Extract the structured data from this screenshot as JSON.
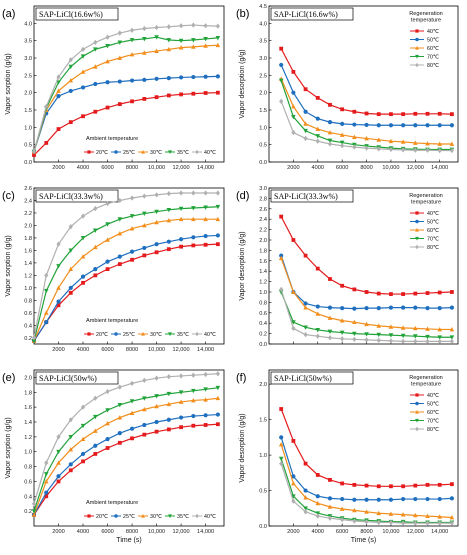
{
  "panels": [
    {
      "letter": "(a)",
      "side": "left",
      "row": 0,
      "title": "SAP-LiCl(16.6w%)",
      "ylabel": "Vapor sorption (g/g)",
      "xlabel": "",
      "legend_title": "Ambient temperature",
      "ylim": [
        0.0,
        4.5
      ],
      "yticks": [
        0.0,
        0.5,
        1.0,
        1.5,
        2.0,
        2.5,
        3.0,
        3.5,
        4.0
      ],
      "ytick_labels": [
        "0.0",
        "0.5",
        "1.0",
        "1.5",
        "2.0",
        "2.5",
        "3.0",
        "3.5",
        "4.0"
      ],
      "show_xticklabels": true
    },
    {
      "letter": "(b)",
      "side": "right",
      "row": 0,
      "title": "SAP-LiCl(16.6w%)",
      "ylabel": "Vapor desorption (g/g)",
      "xlabel": "",
      "legend_title": "Regeneration\ntemperature",
      "ylim": [
        0.0,
        4.5
      ],
      "yticks": [
        0.0,
        0.5,
        1.0,
        1.5,
        2.0,
        2.5,
        3.0,
        3.5,
        4.0,
        4.5
      ],
      "ytick_labels": [
        "0.0",
        "0.5",
        "1.0",
        "1.5",
        "2.0",
        "2.5",
        "3.0",
        "3.5",
        "4.0",
        "4.5"
      ],
      "show_xticklabels": true
    },
    {
      "letter": "(c)",
      "side": "left",
      "row": 1,
      "title": "SAP-LiCl(33.3w%)",
      "ylabel": "Vapor sorption (g/g)",
      "xlabel": "",
      "legend_title": "Ambient temperature",
      "ylim": [
        0.1,
        2.6
      ],
      "yticks": [
        0.2,
        0.4,
        0.6,
        0.8,
        1.0,
        1.2,
        1.4,
        1.6,
        1.8,
        2.0,
        2.2,
        2.4,
        2.6
      ],
      "ytick_labels": [
        "0.2",
        "0.4",
        "0.6",
        "0.8",
        "1.0",
        "1.2",
        "1.4",
        "1.6",
        "1.8",
        "2.0",
        "2.2",
        "2.4",
        "2.6"
      ],
      "show_xticklabels": true
    },
    {
      "letter": "(d)",
      "side": "right",
      "row": 1,
      "title": "SAP-LiCl(33.3w%)",
      "ylabel": "Vapor desorption (g/g)",
      "xlabel": "",
      "legend_title": "Regeneration\ntemperature",
      "ylim": [
        0.0,
        3.0
      ],
      "yticks": [
        0.0,
        0.2,
        0.4,
        0.6,
        0.8,
        1.0,
        1.2,
        1.4,
        1.6,
        1.8,
        2.0,
        2.2,
        2.4,
        2.6,
        2.8,
        3.0
      ],
      "ytick_labels": [
        "0.0",
        "0.2",
        "0.4",
        "0.6",
        "0.8",
        "1.0",
        "1.2",
        "1.4",
        "1.6",
        "1.8",
        "2.0",
        "2.2",
        "2.4",
        "2.6",
        "2.8",
        "3.0"
      ],
      "show_xticklabels": false
    },
    {
      "letter": "(e)",
      "side": "left",
      "row": 2,
      "title": "SAP-LiCl(50w%)",
      "ylabel": "Vapor sorption (g/g)",
      "xlabel": "Time (s)",
      "legend_title": "Ambient temperature",
      "ylim": [
        0.0,
        2.1
      ],
      "yticks": [
        0.2,
        0.4,
        0.6,
        0.8,
        1.0,
        1.2,
        1.4,
        1.6,
        1.8,
        2.0
      ],
      "ytick_labels": [
        "0.2",
        "0.4",
        "0.6",
        "0.8",
        "1.0",
        "1.2",
        "1.4",
        "1.6",
        "1.8",
        "2.0"
      ],
      "show_xticklabels": true
    },
    {
      "letter": "(f)",
      "side": "right",
      "row": 2,
      "title": "SAP-LiCl(50w%)",
      "ylabel": "Vapor desorption (g/g)",
      "xlabel": "Time (s)",
      "legend_title": "Regeneration\ntemperature",
      "ylim": [
        0.0,
        2.2
      ],
      "yticks": [
        0.0,
        0.5,
        1.0,
        1.5,
        2.0
      ],
      "ytick_labels": [
        "0.0",
        "0.5",
        "1.0",
        "1.5",
        "2.0"
      ],
      "show_xticklabels": true
    }
  ],
  "xticks": [
    2000,
    4000,
    6000,
    8000,
    10000,
    12000,
    14000
  ],
  "xtick_labels": [
    "2000",
    "4000",
    "6000",
    "8000",
    "10,000",
    "12,000",
    "14,000"
  ],
  "xlim": [
    0,
    15500
  ],
  "colors": {
    "s20": "#e41a1c",
    "s25": "#1f6fbf",
    "s30": "#f28e1c",
    "s35": "#22a33a",
    "s40": "#b0b0b0",
    "d40": "#e41a1c",
    "d50": "#1f6fbf",
    "d60": "#f28e1c",
    "d70": "#22a33a",
    "d80": "#b0b0b0"
  },
  "chart_data": [
    {
      "type": "line",
      "title": "SAP-LiCl(16.6w%)",
      "ylabel": "Vapor sorption (g/g)",
      "legend_title": "Ambient temperature",
      "x": [
        0,
        1000,
        2000,
        3000,
        4000,
        5000,
        6000,
        7000,
        8000,
        9000,
        10000,
        11000,
        12000,
        13000,
        14000,
        15000
      ],
      "series": [
        {
          "name": "20℃",
          "color": "s20",
          "marker": "square",
          "values": [
            0.2,
            0.55,
            0.95,
            1.15,
            1.32,
            1.45,
            1.57,
            1.67,
            1.75,
            1.82,
            1.87,
            1.92,
            1.95,
            1.97,
            1.99,
            2.0
          ]
        },
        {
          "name": "25℃",
          "color": "s25",
          "marker": "circle",
          "values": [
            0.3,
            1.4,
            1.9,
            2.05,
            2.15,
            2.25,
            2.3,
            2.32,
            2.35,
            2.37,
            2.4,
            2.42,
            2.44,
            2.45,
            2.46,
            2.47
          ]
        },
        {
          "name": "30℃",
          "color": "s30",
          "marker": "triangle",
          "values": [
            0.3,
            1.5,
            2.05,
            2.35,
            2.6,
            2.75,
            2.9,
            3.0,
            3.1,
            3.15,
            3.2,
            3.25,
            3.3,
            3.32,
            3.35,
            3.37
          ]
        },
        {
          "name": "35℃",
          "color": "s35",
          "marker": "tridown",
          "values": [
            0.3,
            1.55,
            2.3,
            2.75,
            3.05,
            3.25,
            3.35,
            3.45,
            3.52,
            3.55,
            3.6,
            3.52,
            3.5,
            3.52,
            3.55,
            3.58
          ]
        },
        {
          "name": "40℃",
          "color": "s40",
          "marker": "diamond",
          "values": [
            0.3,
            1.6,
            2.45,
            2.95,
            3.25,
            3.45,
            3.6,
            3.72,
            3.8,
            3.85,
            3.88,
            3.9,
            3.93,
            3.95,
            3.93,
            3.92
          ]
        }
      ]
    },
    {
      "type": "line",
      "title": "SAP-LiCl(16.6w%)",
      "ylabel": "Vapor desorption (g/g)",
      "legend_title": "Regeneration temperature",
      "x": [
        1000,
        2000,
        3000,
        4000,
        5000,
        6000,
        7000,
        8000,
        9000,
        10000,
        11000,
        12000,
        13000,
        14000,
        15000
      ],
      "series": [
        {
          "name": "40℃",
          "color": "d40",
          "marker": "square",
          "values": [
            3.27,
            2.6,
            2.1,
            1.85,
            1.65,
            1.52,
            1.45,
            1.4,
            1.38,
            1.38,
            1.38,
            1.39,
            1.39,
            1.39,
            1.38
          ]
        },
        {
          "name": "50℃",
          "color": "d50",
          "marker": "circle",
          "values": [
            2.8,
            2.0,
            1.45,
            1.25,
            1.15,
            1.1,
            1.08,
            1.07,
            1.06,
            1.06,
            1.06,
            1.06,
            1.06,
            1.06,
            1.06
          ]
        },
        {
          "name": "60℃",
          "color": "d60",
          "marker": "triangle",
          "values": [
            2.4,
            1.6,
            1.1,
            0.95,
            0.85,
            0.78,
            0.72,
            0.68,
            0.64,
            0.6,
            0.58,
            0.55,
            0.53,
            0.52,
            0.52
          ]
        },
        {
          "name": "70℃",
          "color": "d70",
          "marker": "tridown",
          "values": [
            2.35,
            1.3,
            0.9,
            0.75,
            0.62,
            0.56,
            0.5,
            0.46,
            0.43,
            0.4,
            0.38,
            0.37,
            0.36,
            0.36,
            0.36
          ]
        },
        {
          "name": "80℃",
          "color": "d80",
          "marker": "diamond",
          "values": [
            1.75,
            0.85,
            0.68,
            0.6,
            0.52,
            0.47,
            0.43,
            0.4,
            0.38,
            0.36,
            0.35,
            0.34,
            0.34,
            0.33,
            0.33
          ]
        }
      ]
    },
    {
      "type": "line",
      "title": "SAP-LiCl(33.3w%)",
      "ylabel": "Vapor sorption (g/g)",
      "legend_title": "Ambient temperature",
      "x": [
        0,
        1000,
        2000,
        3000,
        4000,
        5000,
        6000,
        7000,
        8000,
        9000,
        10000,
        11000,
        12000,
        13000,
        14000,
        15000
      ],
      "series": [
        {
          "name": "20℃",
          "color": "s20",
          "marker": "square",
          "values": [
            0.15,
            0.45,
            0.72,
            0.92,
            1.08,
            1.2,
            1.3,
            1.38,
            1.45,
            1.52,
            1.57,
            1.62,
            1.66,
            1.68,
            1.69,
            1.7
          ]
        },
        {
          "name": "25℃",
          "color": "s25",
          "marker": "circle",
          "values": [
            0.15,
            0.45,
            0.78,
            1.0,
            1.18,
            1.3,
            1.42,
            1.5,
            1.58,
            1.64,
            1.7,
            1.74,
            1.78,
            1.81,
            1.83,
            1.84
          ]
        },
        {
          "name": "30℃",
          "color": "s30",
          "marker": "triangle",
          "values": [
            0.15,
            0.6,
            1.0,
            1.3,
            1.5,
            1.65,
            1.77,
            1.87,
            1.95,
            2.0,
            2.05,
            2.08,
            2.1,
            2.1,
            2.1,
            2.1
          ]
        },
        {
          "name": "35℃",
          "color": "s35",
          "marker": "tridown",
          "values": [
            0.15,
            0.95,
            1.35,
            1.6,
            1.8,
            1.92,
            2.02,
            2.1,
            2.15,
            2.19,
            2.22,
            2.25,
            2.27,
            2.28,
            2.29,
            2.3
          ]
        },
        {
          "name": "40℃",
          "color": "s40",
          "marker": "diamond",
          "values": [
            0.2,
            1.2,
            1.7,
            1.98,
            2.15,
            2.27,
            2.35,
            2.4,
            2.44,
            2.47,
            2.49,
            2.51,
            2.52,
            2.52,
            2.52,
            2.52
          ]
        }
      ]
    },
    {
      "type": "line",
      "title": "SAP-LiCl(33.3w%)",
      "ylabel": "Vapor desorption (g/g)",
      "legend_title": "Regeneration temperature",
      "x": [
        1000,
        2000,
        3000,
        4000,
        5000,
        6000,
        7000,
        8000,
        9000,
        10000,
        11000,
        12000,
        13000,
        14000,
        15000
      ],
      "series": [
        {
          "name": "40℃",
          "color": "d40",
          "marker": "square",
          "values": [
            2.45,
            2.0,
            1.7,
            1.45,
            1.25,
            1.12,
            1.05,
            1.0,
            0.97,
            0.96,
            0.96,
            0.97,
            0.98,
            0.99,
            1.0
          ]
        },
        {
          "name": "50℃",
          "color": "d50",
          "marker": "circle",
          "values": [
            1.7,
            1.0,
            0.78,
            0.72,
            0.7,
            0.69,
            0.68,
            0.69,
            0.69,
            0.7,
            0.7,
            0.7,
            0.69,
            0.69,
            0.7
          ]
        },
        {
          "name": "60℃",
          "color": "d60",
          "marker": "triangle",
          "values": [
            1.65,
            1.0,
            0.7,
            0.58,
            0.5,
            0.45,
            0.42,
            0.38,
            0.35,
            0.33,
            0.31,
            0.3,
            0.29,
            0.28,
            0.28
          ]
        },
        {
          "name": "70℃",
          "color": "d70",
          "marker": "tridown",
          "values": [
            1.0,
            0.42,
            0.32,
            0.27,
            0.24,
            0.22,
            0.2,
            0.19,
            0.18,
            0.17,
            0.16,
            0.15,
            0.14,
            0.13,
            0.13
          ]
        },
        {
          "name": "80℃",
          "color": "d80",
          "marker": "diamond",
          "values": [
            1.05,
            0.3,
            0.18,
            0.15,
            0.12,
            0.1,
            0.09,
            0.08,
            0.07,
            0.06,
            0.05,
            0.05,
            0.05,
            0.05,
            0.05
          ]
        }
      ]
    },
    {
      "type": "line",
      "title": "SAP-LiCl(50w%)",
      "ylabel": "Vapor sorption (g/g)",
      "xlabel": "Time (s)",
      "legend_title": "Ambient temperature",
      "x": [
        0,
        1000,
        2000,
        3000,
        4000,
        5000,
        6000,
        7000,
        8000,
        9000,
        10000,
        11000,
        12000,
        13000,
        14000,
        15000
      ],
      "series": [
        {
          "name": "20℃",
          "color": "s20",
          "marker": "square",
          "values": [
            0.15,
            0.4,
            0.6,
            0.75,
            0.87,
            0.97,
            1.05,
            1.12,
            1.18,
            1.23,
            1.27,
            1.3,
            1.33,
            1.35,
            1.36,
            1.37
          ]
        },
        {
          "name": "25℃",
          "color": "s25",
          "marker": "circle",
          "values": [
            0.15,
            0.45,
            0.67,
            0.83,
            0.97,
            1.08,
            1.17,
            1.25,
            1.31,
            1.36,
            1.4,
            1.43,
            1.46,
            1.48,
            1.49,
            1.5
          ]
        },
        {
          "name": "30℃",
          "color": "s30",
          "marker": "triangle",
          "values": [
            0.15,
            0.6,
            0.85,
            1.03,
            1.17,
            1.28,
            1.38,
            1.46,
            1.52,
            1.57,
            1.61,
            1.64,
            1.67,
            1.69,
            1.7,
            1.72
          ]
        },
        {
          "name": "35℃",
          "color": "s35",
          "marker": "tridown",
          "values": [
            0.2,
            0.7,
            1.0,
            1.2,
            1.35,
            1.47,
            1.56,
            1.63,
            1.68,
            1.72,
            1.75,
            1.78,
            1.8,
            1.82,
            1.84,
            1.86
          ]
        },
        {
          "name": "40℃",
          "color": "s40",
          "marker": "diamond",
          "values": [
            0.3,
            0.85,
            1.2,
            1.43,
            1.6,
            1.72,
            1.81,
            1.87,
            1.92,
            1.96,
            1.99,
            2.01,
            2.02,
            2.03,
            2.04,
            2.05
          ]
        }
      ]
    },
    {
      "type": "line",
      "title": "SAP-LiCl(50w%)",
      "ylabel": "Vapor desorption (g/g)",
      "xlabel": "Time (s)",
      "legend_title": "Regeneration temperature",
      "x": [
        1000,
        2000,
        3000,
        4000,
        5000,
        6000,
        7000,
        8000,
        9000,
        10000,
        11000,
        12000,
        13000,
        14000,
        15000
      ],
      "series": [
        {
          "name": "40℃",
          "color": "d40",
          "marker": "square",
          "values": [
            1.65,
            1.2,
            0.88,
            0.72,
            0.65,
            0.6,
            0.58,
            0.57,
            0.56,
            0.56,
            0.56,
            0.57,
            0.58,
            0.58,
            0.59
          ]
        },
        {
          "name": "50℃",
          "color": "d50",
          "marker": "circle",
          "values": [
            1.25,
            0.7,
            0.5,
            0.42,
            0.39,
            0.38,
            0.37,
            0.37,
            0.37,
            0.37,
            0.38,
            0.38,
            0.38,
            0.38,
            0.39
          ]
        },
        {
          "name": "60℃",
          "color": "d60",
          "marker": "triangle",
          "values": [
            1.15,
            0.6,
            0.4,
            0.32,
            0.27,
            0.24,
            0.22,
            0.2,
            0.18,
            0.17,
            0.16,
            0.15,
            0.14,
            0.13,
            0.12
          ]
        },
        {
          "name": "70℃",
          "color": "d70",
          "marker": "tridown",
          "values": [
            0.95,
            0.42,
            0.25,
            0.18,
            0.14,
            0.11,
            0.09,
            0.08,
            0.07,
            0.06,
            0.06,
            0.05,
            0.05,
            0.05,
            0.05
          ]
        },
        {
          "name": "80℃",
          "color": "d80",
          "marker": "diamond",
          "values": [
            0.88,
            0.35,
            0.2,
            0.14,
            0.11,
            0.09,
            0.07,
            0.06,
            0.05,
            0.05,
            0.04,
            0.04,
            0.04,
            0.04,
            0.04
          ]
        }
      ]
    }
  ]
}
